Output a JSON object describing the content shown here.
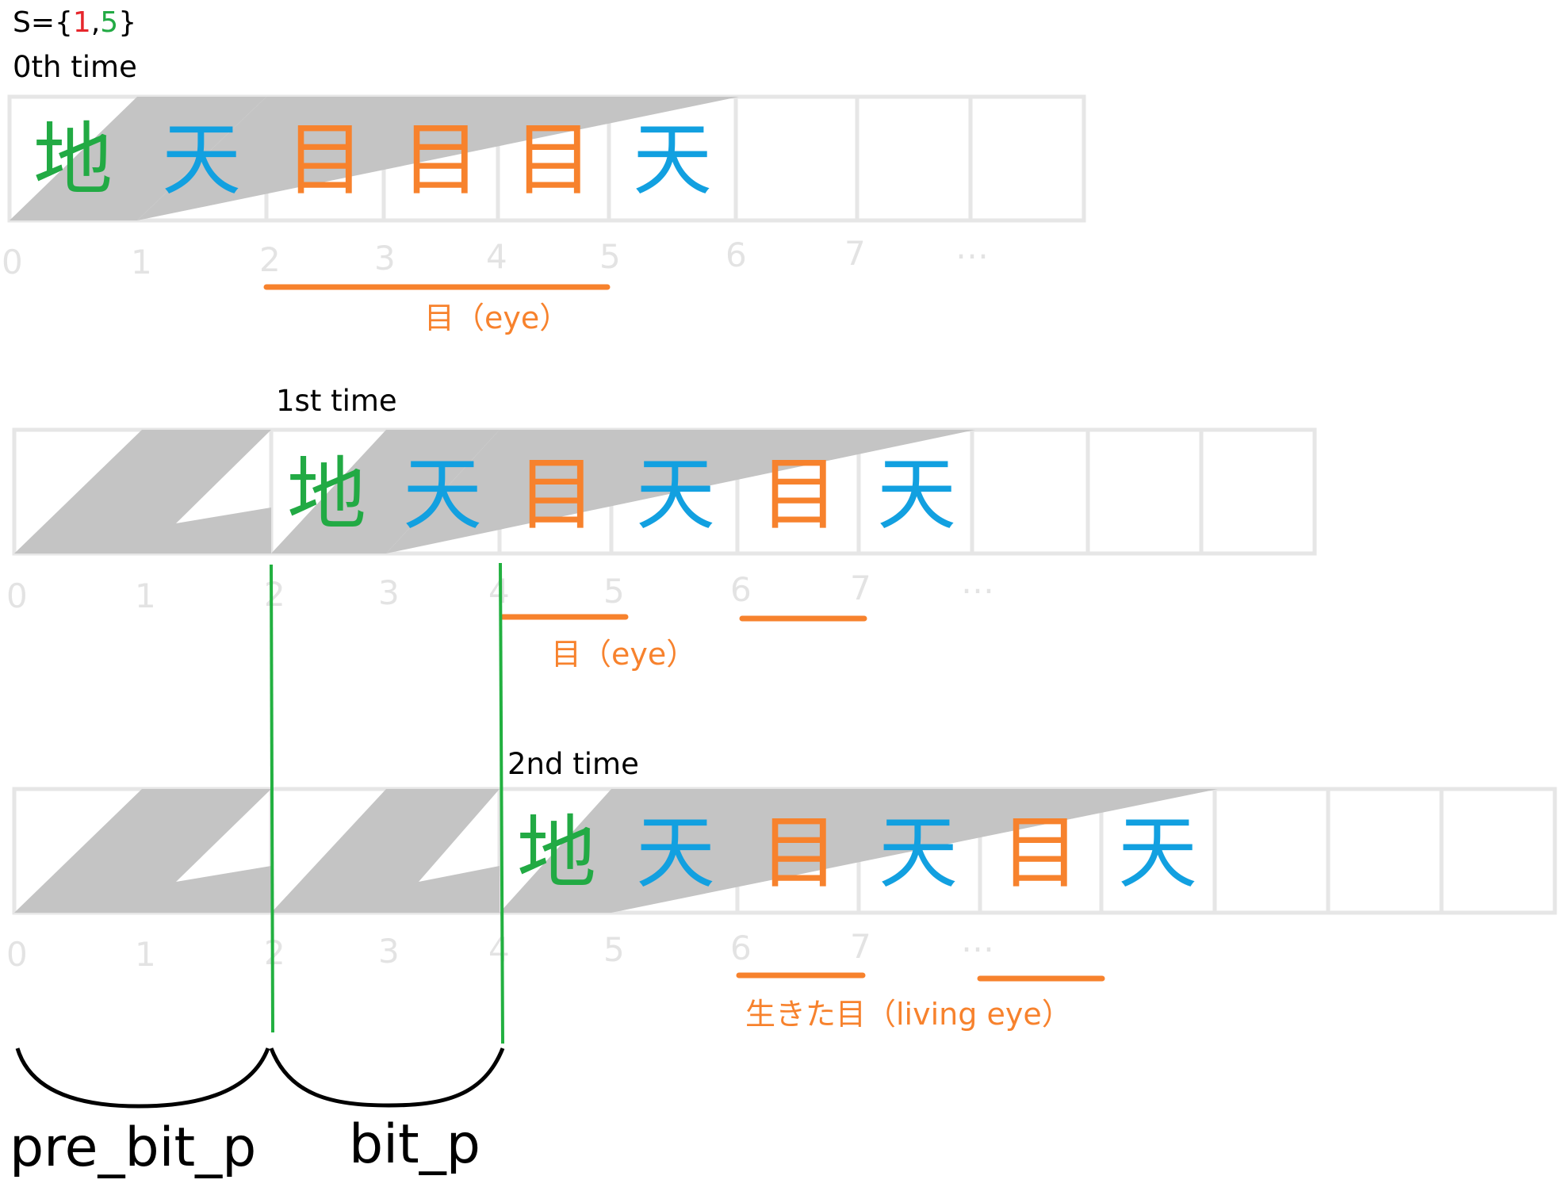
{
  "set_label": {
    "prefix": "S={",
    "a": "1",
    "comma": ",",
    "b": "5",
    "suffix": "}"
  },
  "colors": {
    "chi": "#22aa44",
    "ten": "#12a0e0",
    "me": "#f7822d",
    "set_a": "#e6262c",
    "set_b": "#22aa44",
    "shade": "#c4c4c4",
    "index": "#e3e3e3",
    "separator": "#22b040"
  },
  "rows": [
    {
      "title": "0th time",
      "cells": [
        "地",
        "天",
        "目",
        "目",
        "目",
        "天",
        "",
        "",
        ""
      ],
      "indices": [
        "0",
        "1",
        "2",
        "3",
        "4",
        "5",
        "6",
        "7",
        "…"
      ],
      "annotation": "目（eye）"
    },
    {
      "title": "1st time",
      "cells": [
        "",
        "",
        "地",
        "天",
        "目",
        "天",
        "目",
        "天",
        "",
        "",
        ""
      ],
      "indices": [
        "0",
        "1",
        "2",
        "3",
        "4",
        "5",
        "6",
        "7",
        "…"
      ],
      "annotation": "目（eye）"
    },
    {
      "title": "2nd time",
      "cells": [
        "",
        "",
        "",
        "",
        "地",
        "天",
        "目",
        "天",
        "目",
        "天",
        "",
        "",
        ""
      ],
      "indices": [
        "0",
        "1",
        "2",
        "3",
        "4",
        "5",
        "6",
        "7",
        "…"
      ],
      "annotation": "生きた目（living eye）"
    }
  ],
  "braces": [
    "pre_bit_p",
    "bit_p"
  ]
}
